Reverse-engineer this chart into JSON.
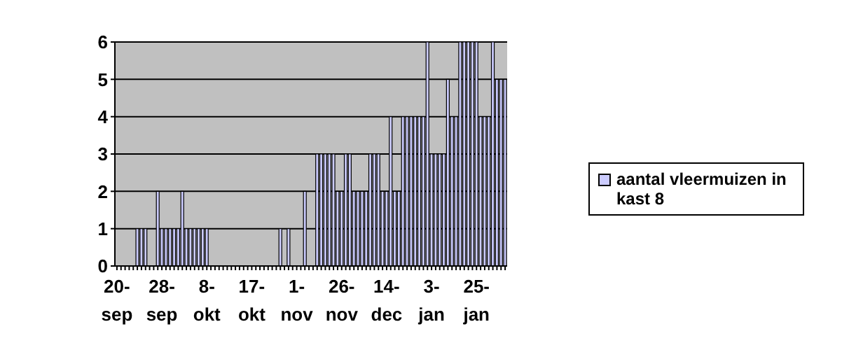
{
  "chart_data": {
    "type": "bar",
    "categories": [
      "20-sep",
      null,
      null,
      null,
      null,
      null,
      null,
      null,
      null,
      null,
      null,
      "28-sep",
      null,
      null,
      null,
      null,
      null,
      null,
      null,
      null,
      null,
      null,
      "8-okt",
      null,
      null,
      null,
      null,
      null,
      null,
      null,
      null,
      null,
      null,
      "17-okt",
      null,
      null,
      null,
      null,
      null,
      null,
      null,
      null,
      null,
      null,
      "1-nov",
      null,
      null,
      null,
      null,
      null,
      null,
      null,
      null,
      null,
      null,
      "26-nov",
      null,
      null,
      null,
      null,
      null,
      null,
      null,
      null,
      null,
      null,
      "14-dec",
      null,
      null,
      null,
      null,
      null,
      null,
      null,
      null,
      null,
      null,
      "3-jan",
      null,
      null,
      null,
      null,
      null,
      null,
      null,
      null,
      null,
      null,
      "25-jan",
      null,
      null,
      null,
      null,
      null,
      null,
      null
    ],
    "series": [
      {
        "name": "aantal vleermuizen in kast 8",
        "color": "#ccccff",
        "values": [
          0,
          0,
          0,
          0,
          0,
          1,
          1,
          1,
          0,
          0,
          2,
          1,
          1,
          1,
          1,
          1,
          2,
          1,
          1,
          1,
          1,
          1,
          1,
          0,
          0,
          0,
          0,
          0,
          0,
          0,
          0,
          0,
          0,
          0,
          0,
          0,
          0,
          0,
          0,
          0,
          1,
          0,
          1,
          0,
          0,
          0,
          2,
          0,
          0,
          3,
          3,
          3,
          3,
          3,
          2,
          2,
          3,
          3,
          2,
          2,
          2,
          2,
          3,
          3,
          3,
          2,
          2,
          4,
          2,
          2,
          4,
          4,
          4,
          4,
          4,
          4,
          6,
          3,
          3,
          3,
          3,
          5,
          4,
          4,
          6,
          6,
          6,
          6,
          6,
          4,
          4,
          4,
          6,
          5,
          5,
          5
        ]
      }
    ],
    "ylim": [
      0,
      6
    ],
    "yticks": [
      0,
      1,
      2,
      3,
      4,
      5,
      6
    ],
    "grid": "y",
    "legend": "right"
  }
}
